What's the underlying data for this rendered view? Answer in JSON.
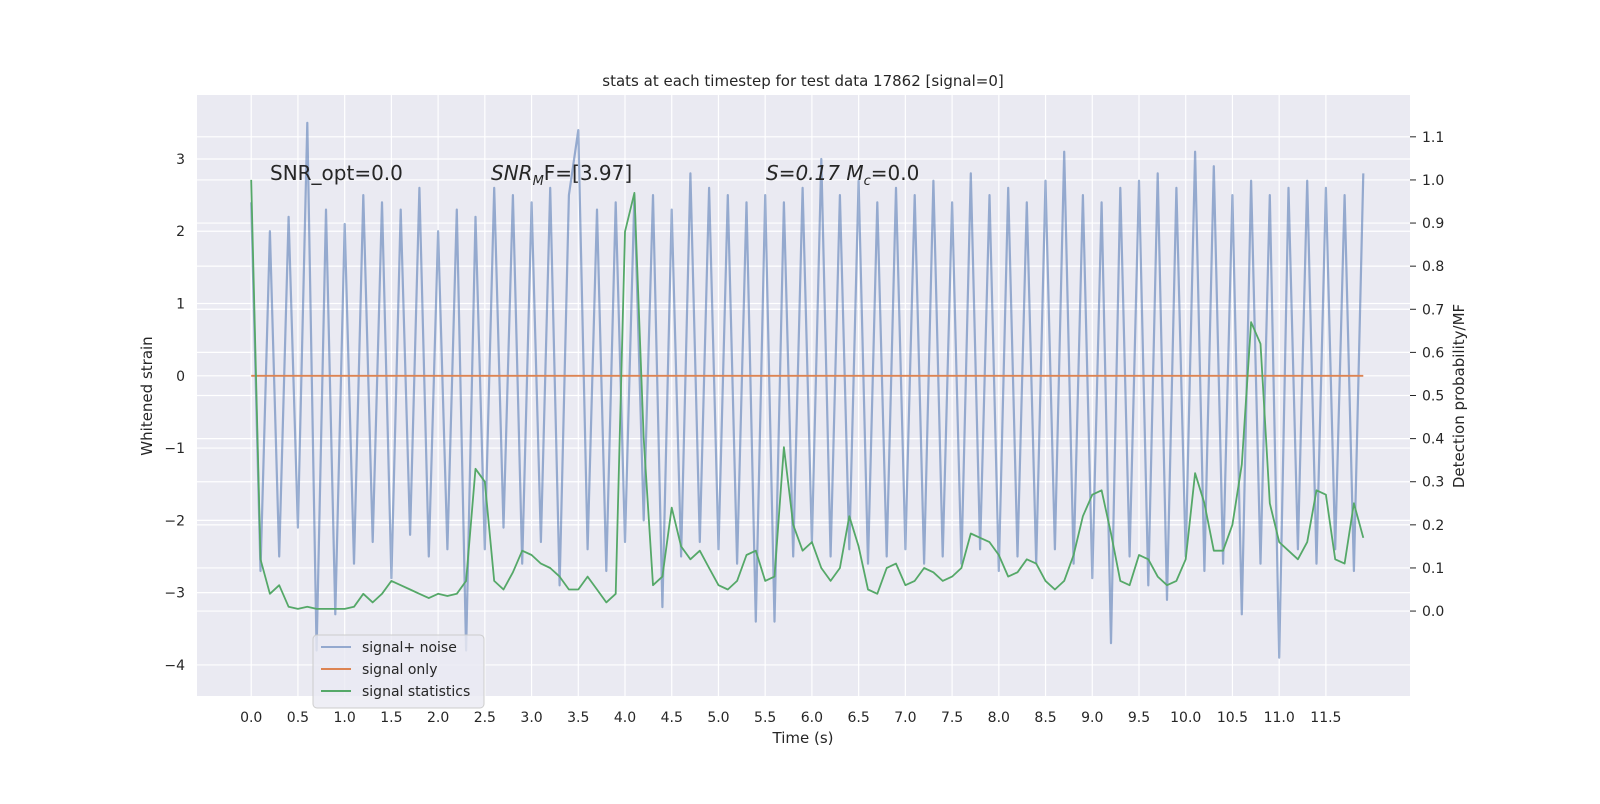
{
  "chart_data": {
    "type": "line",
    "title": "stats at each timestep for test data 17862 [signal=0]",
    "xlabel": "Time (s)",
    "ylabel": "Whitened strain",
    "y2label": "Detection probability/MF",
    "annotations": [
      {
        "parts": [
          "SNR_opt=0.0"
        ]
      },
      {
        "parts": [
          "SNR",
          "M",
          "F=[3.97]"
        ]
      },
      {
        "parts": [
          "S=0.17   M",
          "c",
          "=0.0"
        ]
      }
    ],
    "x": [
      0,
      0.1,
      0.2,
      0.3,
      0.4,
      0.5,
      0.6,
      0.7,
      0.8,
      0.9,
      1.0,
      1.1,
      1.2,
      1.3,
      1.4,
      1.5,
      1.6,
      1.7,
      1.8,
      1.9,
      2.0,
      2.1,
      2.2,
      2.3,
      2.4,
      2.5,
      2.6,
      2.7,
      2.8,
      2.9,
      3.0,
      3.1,
      3.2,
      3.3,
      3.4,
      3.5,
      3.6,
      3.7,
      3.8,
      3.9,
      4.0,
      4.1,
      4.2,
      4.3,
      4.4,
      4.5,
      4.6,
      4.7,
      4.8,
      4.9,
      5.0,
      5.1,
      5.2,
      5.3,
      5.4,
      5.5,
      5.6,
      5.7,
      5.8,
      5.9,
      6.0,
      6.1,
      6.2,
      6.3,
      6.4,
      6.5,
      6.6,
      6.7,
      6.8,
      6.9,
      7.0,
      7.1,
      7.2,
      7.3,
      7.4,
      7.5,
      7.6,
      7.7,
      7.8,
      7.9,
      8.0,
      8.1,
      8.2,
      8.3,
      8.4,
      8.5,
      8.6,
      8.7,
      8.8,
      8.9,
      9.0,
      9.1,
      9.2,
      9.3,
      9.4,
      9.5,
      9.6,
      9.7,
      9.8,
      9.9,
      10.0,
      10.1,
      10.2,
      10.3,
      10.4,
      10.5,
      10.6,
      10.7,
      10.8,
      10.9,
      11.0,
      11.1,
      11.2,
      11.3,
      11.4,
      11.5,
      11.6,
      11.7,
      11.8,
      11.9
    ],
    "series": [
      {
        "name": "signal+ noise",
        "color": "#4c72b0",
        "alpha": 0.55,
        "values": [
          2.4,
          -2.7,
          2.0,
          -2.5,
          2.2,
          -2.1,
          3.5,
          -3.8,
          2.3,
          -3.3,
          2.1,
          -2.6,
          2.5,
          -2.3,
          2.4,
          -2.8,
          2.3,
          -2.2,
          2.6,
          -2.5,
          2.0,
          -2.4,
          2.3,
          -3.8,
          2.2,
          -2.4,
          2.6,
          -2.1,
          2.5,
          -2.6,
          2.4,
          -2.3,
          2.6,
          -2.9,
          2.5,
          3.4,
          -2.4,
          2.3,
          -2.7,
          2.4,
          -2.3,
          2.5,
          -2.0,
          2.5,
          -3.2,
          2.3,
          -2.5,
          2.8,
          -2.3,
          2.6,
          -2.4,
          2.5,
          -2.6,
          2.4,
          -3.4,
          2.5,
          -3.4,
          2.4,
          -2.5,
          2.6,
          -2.3,
          3.0,
          -2.5,
          2.5,
          -2.4,
          2.7,
          -2.6,
          2.4,
          -2.5,
          2.6,
          -2.4,
          2.5,
          -2.6,
          2.7,
          -2.5,
          2.4,
          -2.6,
          2.8,
          -2.4,
          2.5,
          -2.7,
          2.6,
          -2.5,
          2.4,
          -2.6,
          2.7,
          -2.4,
          3.1,
          -2.6,
          2.5,
          -2.8,
          2.4,
          -3.7,
          2.6,
          -2.5,
          2.7,
          -2.9,
          2.8,
          -3.1,
          2.6,
          -2.5,
          3.1,
          -2.7,
          2.9,
          -2.6,
          2.5,
          -3.3,
          2.7,
          -2.6,
          2.5,
          -3.9,
          2.6,
          -2.4,
          2.7,
          -2.6,
          2.6,
          -2.4,
          2.5,
          -2.7,
          2.8
        ]
      },
      {
        "name": "signal only",
        "color": "#dd8452",
        "alpha": 1,
        "values": [
          0,
          0,
          0,
          0,
          0,
          0,
          0,
          0,
          0,
          0,
          0,
          0,
          0,
          0,
          0,
          0,
          0,
          0,
          0,
          0,
          0,
          0,
          0,
          0,
          0,
          0,
          0,
          0,
          0,
          0,
          0,
          0,
          0,
          0,
          0,
          0,
          0,
          0,
          0,
          0,
          0,
          0,
          0,
          0,
          0,
          0,
          0,
          0,
          0,
          0,
          0,
          0,
          0,
          0,
          0,
          0,
          0,
          0,
          0,
          0,
          0,
          0,
          0,
          0,
          0,
          0,
          0,
          0,
          0,
          0,
          0,
          0,
          0,
          0,
          0,
          0,
          0,
          0,
          0,
          0,
          0,
          0,
          0,
          0,
          0,
          0,
          0,
          0,
          0,
          0,
          0,
          0,
          0,
          0,
          0,
          0,
          0,
          0,
          0,
          0,
          0,
          0,
          0,
          0,
          0,
          0,
          0,
          0,
          0,
          0,
          0,
          0,
          0,
          0,
          0,
          0,
          0,
          0,
          0,
          0
        ]
      },
      {
        "name": "signal statistics",
        "color": "#55a868",
        "alpha": 1,
        "axis": "y2",
        "values": [
          1.0,
          0.12,
          0.04,
          0.06,
          0.01,
          0.005,
          0.01,
          0.005,
          0.005,
          0.005,
          0.005,
          0.01,
          0.04,
          0.02,
          0.04,
          0.07,
          0.06,
          0.05,
          0.04,
          0.03,
          0.04,
          0.035,
          0.04,
          0.07,
          0.33,
          0.3,
          0.07,
          0.05,
          0.09,
          0.14,
          0.13,
          0.11,
          0.1,
          0.08,
          0.05,
          0.05,
          0.08,
          0.05,
          0.02,
          0.04,
          0.88,
          0.97,
          0.4,
          0.06,
          0.08,
          0.24,
          0.15,
          0.12,
          0.14,
          0.1,
          0.06,
          0.05,
          0.07,
          0.13,
          0.14,
          0.07,
          0.08,
          0.38,
          0.2,
          0.14,
          0.16,
          0.1,
          0.07,
          0.1,
          0.22,
          0.15,
          0.05,
          0.04,
          0.1,
          0.11,
          0.06,
          0.07,
          0.1,
          0.09,
          0.07,
          0.08,
          0.1,
          0.18,
          0.17,
          0.16,
          0.13,
          0.08,
          0.09,
          0.12,
          0.11,
          0.07,
          0.05,
          0.07,
          0.13,
          0.22,
          0.27,
          0.28,
          0.18,
          0.07,
          0.06,
          0.13,
          0.12,
          0.08,
          0.06,
          0.07,
          0.12,
          0.32,
          0.25,
          0.14,
          0.14,
          0.2,
          0.34,
          0.67,
          0.62,
          0.25,
          0.16,
          0.14,
          0.12,
          0.16,
          0.28,
          0.27,
          0.12,
          0.11,
          0.25,
          0.17
        ]
      }
    ],
    "xlim": [
      -0.58,
      12.4
    ],
    "xticks": [
      {
        "value": 0,
        "label": "0.0"
      },
      0.5,
      {
        "value": 1,
        "label": "1.0"
      },
      1.5,
      {
        "value": 2,
        "label": "2.0"
      },
      2.5,
      {
        "value": 3,
        "label": "3.0"
      },
      3.5,
      {
        "value": 4,
        "label": "4.0"
      },
      4.5,
      {
        "value": 5,
        "label": "5.0"
      },
      5.5,
      {
        "value": 6,
        "label": "6.0"
      },
      6.5,
      {
        "value": 7,
        "label": "7.0"
      },
      7.5,
      {
        "value": 8,
        "label": "8.0"
      },
      8.5,
      {
        "value": 9,
        "label": "9.0"
      },
      9.5,
      {
        "value": 10,
        "label": "10.0"
      },
      10.5,
      {
        "value": 11,
        "label": "11.0"
      },
      11.5
    ],
    "ylim": [
      -4.43,
      3.885
    ],
    "yticks": [
      {
        "value": -4,
        "label": "−4"
      },
      {
        "value": -3,
        "label": "−3"
      },
      {
        "value": -2,
        "label": "−2"
      },
      {
        "value": -1,
        "label": "−1"
      },
      0,
      1,
      2,
      3
    ],
    "y2lim": [
      -0.197,
      1.197
    ],
    "y2ticks": [
      {
        "value": 0,
        "label": "0.0"
      },
      0.1,
      0.2,
      0.3,
      0.4,
      0.5,
      0.6,
      0.7,
      0.8,
      0.9,
      {
        "value": 1,
        "label": "1.0"
      },
      1.1
    ],
    "grid": true,
    "legend": "lower left"
  }
}
